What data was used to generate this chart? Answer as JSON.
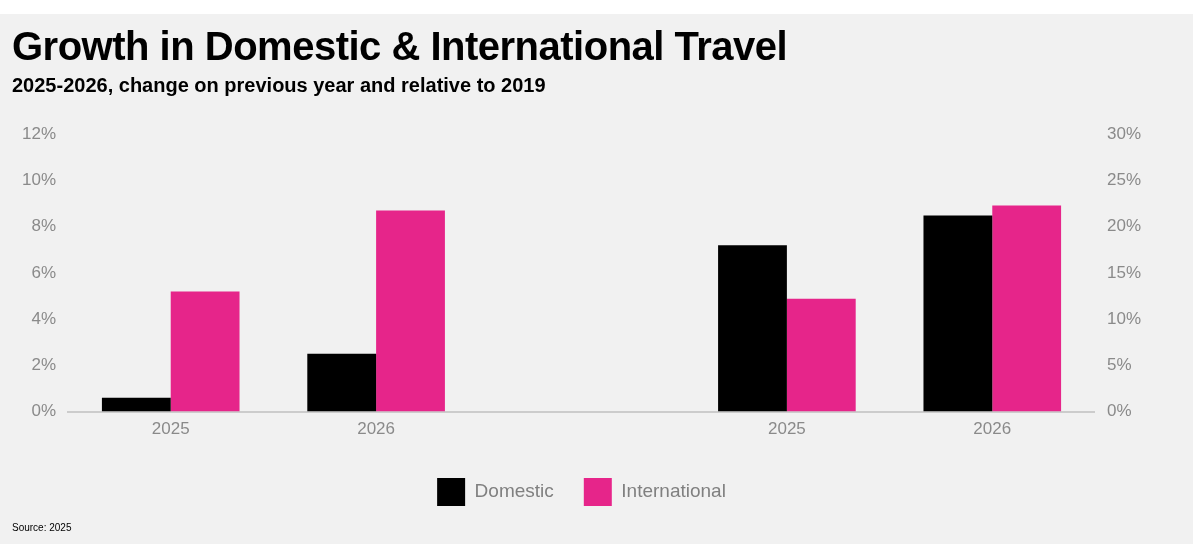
{
  "chart_data": {
    "type": "bar",
    "title": "Growth in Domestic & International Travel",
    "subtitle": "2025-2026, change on previous year and relative to 2019",
    "categories": [
      "2025",
      "2026",
      null,
      "2025",
      "2026"
    ],
    "series": [
      {
        "name": "Domestic",
        "color": "#000000",
        "values": [
          0.6,
          2.5,
          null,
          null,
          null
        ]
      },
      {
        "name": "International",
        "color": "#e6258a",
        "values": [
          5.2,
          8.7,
          null,
          null,
          null
        ]
      },
      {
        "color": "#000000",
        "axis": "y2",
        "values": [
          null,
          null,
          null,
          18.0,
          21.2
        ]
      },
      {
        "color": "#e6258a",
        "axis": "y2",
        "values": [
          null,
          null,
          null,
          12.2,
          22.3
        ]
      }
    ],
    "ylim": [
      0,
      12
    ],
    "yticks": [
      {
        "value": 0,
        "label": "0%"
      },
      {
        "value": 2,
        "label": "2%"
      },
      {
        "value": 4,
        "label": "4%"
      },
      {
        "value": 6,
        "label": "6%"
      },
      {
        "value": 8,
        "label": "8%"
      },
      {
        "value": 10,
        "label": "10%"
      },
      {
        "value": 12,
        "label": "12%"
      }
    ],
    "y2lim": [
      0,
      30
    ],
    "y2ticks": [
      {
        "value": 0,
        "label": "0%"
      },
      {
        "value": 5,
        "label": "5%"
      },
      {
        "value": 10,
        "label": "10%"
      },
      {
        "value": 15,
        "label": "15%"
      },
      {
        "value": 20,
        "label": "20%"
      },
      {
        "value": 25,
        "label": "25%"
      },
      {
        "value": 30,
        "label": "30%"
      }
    ],
    "grid": false,
    "legend": "bottom",
    "annotations": [
      "Source: 2025"
    ]
  }
}
